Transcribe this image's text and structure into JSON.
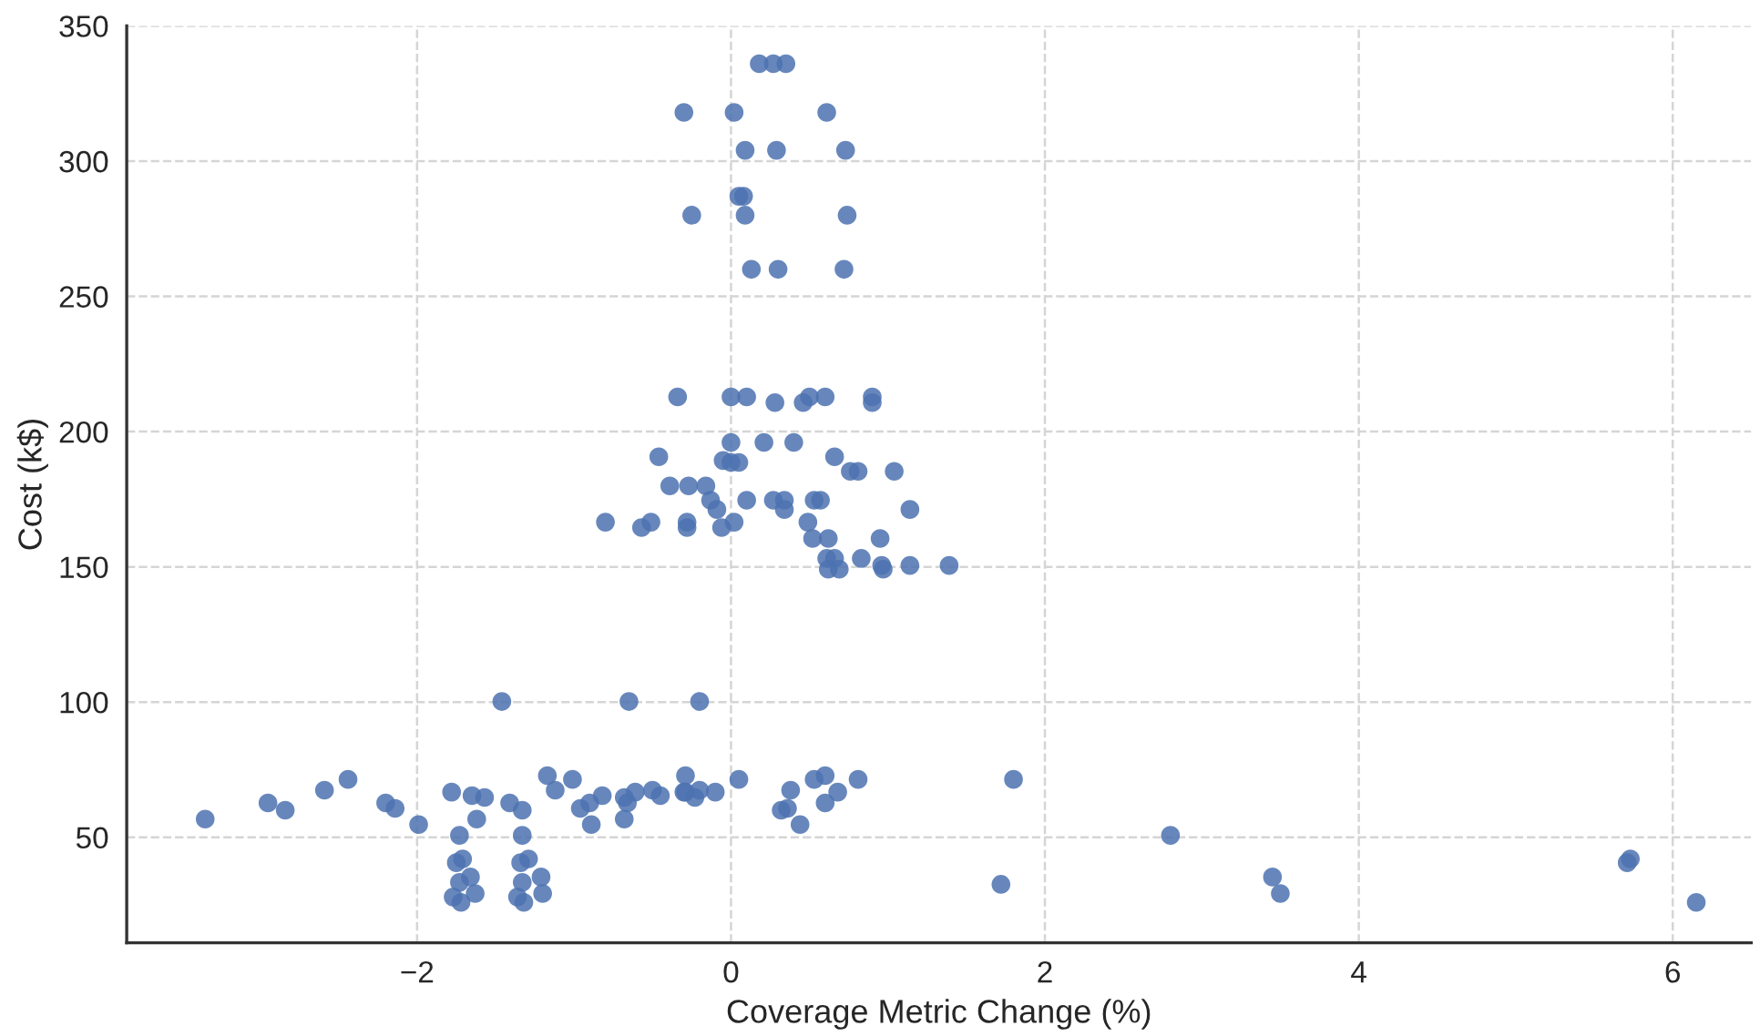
{
  "chart_data": {
    "type": "scatter",
    "xlabel": "Coverage Metric Change (%)",
    "ylabel": "Cost (k$)",
    "xlim": [
      -3.85,
      6.5
    ],
    "ylim": [
      11,
      350
    ],
    "xticks": [
      {
        "value": -2,
        "label": "−2"
      },
      0,
      2,
      4,
      6
    ],
    "yticks": [
      50,
      100,
      150,
      200,
      250,
      300,
      350
    ],
    "grid": true,
    "marker": "circle",
    "series": [
      {
        "color": "#4c72b0",
        "x": [
          0.18,
          0.27,
          0.35,
          -0.3,
          0.02,
          0.61,
          0.09,
          0.29,
          0.73,
          0.05,
          0.08,
          -0.25,
          0.09,
          0.74,
          0.13,
          0.3,
          0.72,
          -0.34,
          0.0,
          0.1,
          0.28,
          0.46,
          0.5,
          0.6,
          0.9,
          0.9,
          -0.46,
          0.0,
          0.21,
          0.4,
          0.66,
          -0.05,
          0.0,
          0.05,
          0.76,
          0.81,
          1.04,
          -0.39,
          -0.27,
          -0.16,
          -0.13,
          -0.09,
          0.1,
          0.27,
          0.34,
          0.34,
          0.53,
          0.57,
          1.14,
          -0.8,
          -0.57,
          -0.51,
          -0.28,
          -0.28,
          -0.06,
          0.02,
          0.49,
          0.52,
          0.62,
          0.95,
          0.61,
          0.66,
          0.83,
          0.62,
          0.69,
          0.96,
          0.97,
          1.14,
          1.39,
          -1.46,
          -0.65,
          -0.2,
          -3.35,
          -2.95,
          -2.84,
          -2.59,
          -2.44,
          -2.2,
          -2.14,
          -1.99,
          -1.78,
          -1.65,
          -1.57,
          -1.62,
          -1.73,
          -1.41,
          -1.33,
          -1.33,
          -1.17,
          -1.12,
          -1.01,
          -0.96,
          -0.9,
          -0.82,
          -0.89,
          -0.68,
          -0.66,
          -0.68,
          -0.61,
          -0.5,
          -0.45,
          -0.29,
          -0.29,
          -0.3,
          -0.23,
          -0.2,
          -0.1,
          0.05,
          0.32,
          0.38,
          0.36,
          0.44,
          0.53,
          0.6,
          0.6,
          0.68,
          0.81,
          1.8,
          1.72,
          2.8,
          3.45,
          3.5,
          5.71,
          5.73,
          6.15,
          -1.75,
          -1.71,
          -1.66,
          -1.73,
          -1.77,
          -1.72,
          -1.63,
          -1.34,
          -1.29,
          -1.21,
          -1.33,
          -1.36,
          -1.32,
          -1.2
        ],
        "values": [
          336,
          336,
          336,
          318,
          318,
          318,
          304,
          304,
          304,
          287,
          287,
          280,
          280,
          280,
          260,
          260,
          260,
          212.8,
          212.8,
          212.8,
          210.7,
          210.7,
          212.8,
          212.8,
          212.8,
          210.7,
          190.7,
          196.0,
          196.0,
          196.0,
          190.7,
          189.3,
          188.6,
          188.6,
          185.3,
          185.3,
          185.3,
          179.9,
          179.9,
          179.9,
          174.6,
          171.2,
          174.6,
          174.6,
          174.6,
          171.2,
          174.6,
          174.6,
          171.2,
          166.5,
          164.5,
          166.5,
          166.5,
          164.5,
          164.5,
          166.5,
          166.5,
          160.5,
          160.5,
          160.5,
          153.1,
          153.1,
          153.1,
          149.1,
          149.1,
          150.5,
          149.1,
          150.5,
          150.5,
          100.2,
          100.2,
          100.2,
          56.7,
          62.7,
          60.0,
          67.4,
          71.4,
          62.7,
          60.7,
          54.7,
          66.7,
          65.4,
          64.7,
          56.7,
          50.7,
          62.7,
          60.0,
          50.7,
          72.8,
          67.4,
          71.4,
          60.7,
          62.7,
          65.4,
          54.7,
          64.7,
          62.7,
          56.7,
          66.7,
          67.4,
          65.4,
          72.8,
          66.7,
          66.7,
          64.7,
          67.4,
          66.7,
          71.4,
          60.0,
          67.4,
          60.7,
          54.7,
          71.4,
          72.8,
          62.7,
          66.7,
          71.4,
          71.4,
          32.6,
          50.7,
          35.3,
          29.2,
          40.6,
          42.0,
          25.9,
          40.6,
          42.0,
          35.3,
          33.3,
          27.9,
          25.9,
          29.2,
          40.6,
          42.0,
          35.3,
          33.3,
          27.9,
          25.9,
          29.2
        ]
      }
    ]
  }
}
